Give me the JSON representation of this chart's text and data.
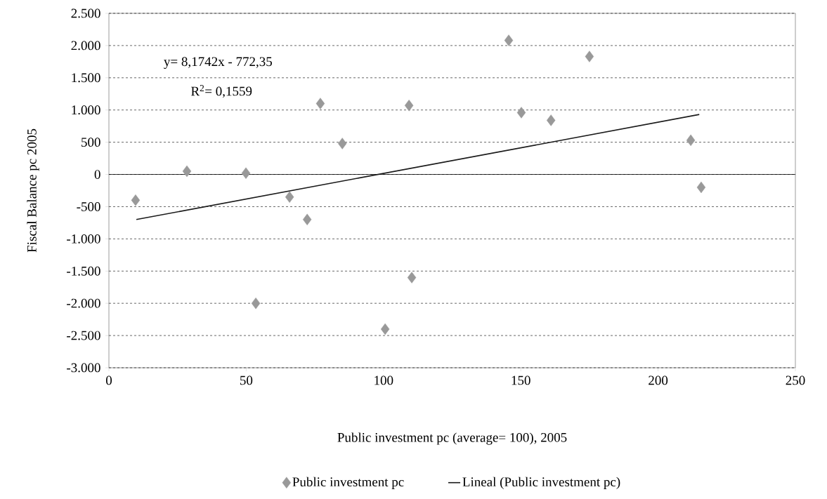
{
  "chart_data": {
    "type": "scatter",
    "xlabel": "Public investment pc (average= 100), 2005",
    "ylabel": "Fiscal Balance pc 2005",
    "x": [
      9.7,
      28.4,
      49.9,
      65.8,
      72.2,
      53.5,
      77,
      85,
      100.6,
      109.3,
      110.3,
      145.6,
      150.2,
      161,
      175,
      211.9,
      215.7
    ],
    "series": [
      {
        "name": "Public investment pc",
        "marker": "diamond",
        "color": "#999999",
        "values": [
          -400,
          50,
          20,
          -350,
          -700,
          -2000,
          1100,
          480,
          -2400,
          1070,
          -1600,
          2080,
          960,
          840,
          1830,
          530,
          -200
        ]
      },
      {
        "name": "Lineal (Public investment pc)",
        "type": "line",
        "marker": "none",
        "color": "#1a1a1a",
        "x": [
          10,
          215
        ],
        "values": [
          -700,
          930
        ]
      }
    ],
    "annotations": [
      "y= 8,1742x - 772,35",
      "R$^{2}$= 0,1559"
    ],
    "xlim": [
      0,
      250
    ],
    "xticks": [
      0,
      50,
      100,
      150,
      200,
      250
    ],
    "ylim": [
      -3000,
      2500
    ],
    "yticks": [
      {
        "value": -3000,
        "label": "-3.000"
      },
      {
        "value": -2500,
        "label": "-2.500"
      },
      {
        "value": -2000,
        "label": "-2.000"
      },
      {
        "value": -1500,
        "label": "-1.500"
      },
      {
        "value": -1000,
        "label": "-1.000"
      },
      {
        "value": -500,
        "label": "-500"
      },
      {
        "value": 0,
        "label": "0"
      },
      {
        "value": 500,
        "label": "500"
      },
      {
        "value": 1000,
        "label": "1.000"
      },
      {
        "value": 1500,
        "label": "1.500"
      },
      {
        "value": 2000,
        "label": "2.000"
      },
      {
        "value": 2500,
        "label": "2.500"
      }
    ],
    "ref_lines": [
      {
        "axis": "y",
        "value": 0,
        "color": "#000000"
      }
    ],
    "grid": "y",
    "legend": "bottom"
  }
}
